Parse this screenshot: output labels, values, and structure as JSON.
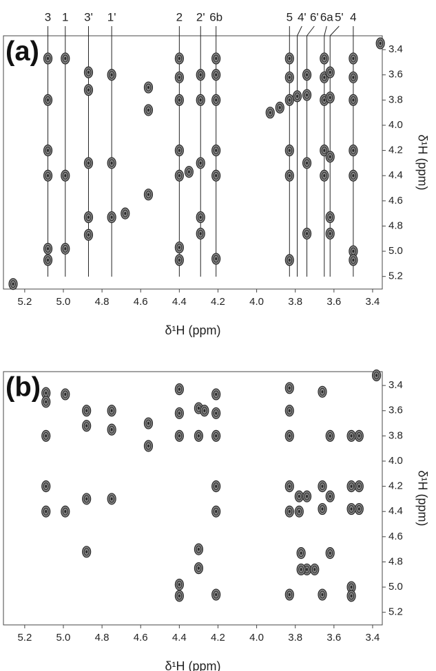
{
  "chart_data": [
    {
      "type": "scatter",
      "panel_label": "(a)",
      "x_label": "δ¹H (ppm)",
      "y_label": "δ¹H (ppm)",
      "xlim": [
        5.31,
        3.35
      ],
      "ylim": [
        5.3,
        3.29
      ],
      "xticks": [
        5.2,
        {
          "value": 5,
          "label": "5.0"
        },
        4.8,
        4.6,
        4.4,
        4.2,
        {
          "value": 4,
          "label": "4.0"
        },
        3.8,
        3.6,
        3.4
      ],
      "yticks": [
        3.4,
        3.6,
        3.8,
        {
          "value": 4,
          "label": "4.0"
        },
        4.2,
        4.4,
        4.6,
        4.8,
        {
          "value": 5,
          "label": "5.0"
        },
        5.2
      ],
      "assignments": {
        "labels": [
          "3",
          "1",
          "3'",
          "1'",
          "2",
          "2'",
          "6b",
          "5",
          "4'",
          "6'",
          "6a",
          "5'",
          "4"
        ],
        "x": [
          5.08,
          4.99,
          4.87,
          4.75,
          4.4,
          4.29,
          4.21,
          3.83,
          3.79,
          3.74,
          3.65,
          3.62,
          3.5
        ]
      },
      "x": [
        5.08,
        5.08,
        5.08,
        5.08,
        5.08,
        5.08,
        4.99,
        4.99,
        4.99,
        4.87,
        4.87,
        4.87,
        4.87,
        4.87,
        4.75,
        4.75,
        4.75,
        4.56,
        4.56,
        4.56,
        4.4,
        4.4,
        4.4,
        4.4,
        4.4,
        4.4,
        4.4,
        4.29,
        4.29,
        4.29,
        4.29,
        4.29,
        4.21,
        4.21,
        4.21,
        4.21,
        4.21,
        4.21,
        3.93,
        3.88,
        3.83,
        3.83,
        3.83,
        3.83,
        3.83,
        3.83,
        3.79,
        3.74,
        3.74,
        3.74,
        3.74,
        3.65,
        3.65,
        3.65,
        3.65,
        3.65,
        3.62,
        3.62,
        3.62,
        3.62,
        3.62,
        3.5,
        3.5,
        3.5,
        3.5,
        3.5,
        3.5,
        3.5,
        3.36,
        5.26,
        4.35,
        4.68
      ],
      "values": [
        3.47,
        3.8,
        4.2,
        4.4,
        4.98,
        5.07,
        3.47,
        4.4,
        4.98,
        3.58,
        3.72,
        4.3,
        4.73,
        4.87,
        3.6,
        4.3,
        4.73,
        3.7,
        3.88,
        4.55,
        3.47,
        3.62,
        3.8,
        4.2,
        4.4,
        4.97,
        5.07,
        3.6,
        3.8,
        4.3,
        4.73,
        4.86,
        3.47,
        3.6,
        3.8,
        4.2,
        4.4,
        5.06,
        3.9,
        3.86,
        3.47,
        3.62,
        3.8,
        4.2,
        4.4,
        5.07,
        3.77,
        3.6,
        3.76,
        4.3,
        4.86,
        3.47,
        3.62,
        3.8,
        4.2,
        4.4,
        3.58,
        3.78,
        4.25,
        4.73,
        4.86,
        3.47,
        3.62,
        3.8,
        4.2,
        4.4,
        5.0,
        5.07,
        3.35,
        5.26,
        4.37,
        4.7
      ],
      "color": "#2a2a2a"
    },
    {
      "type": "scatter",
      "panel_label": "(b)",
      "x_label": "δ¹H (ppm)",
      "y_label": "δ¹H (ppm)",
      "xlim": [
        5.31,
        3.35
      ],
      "ylim": [
        5.3,
        3.29
      ],
      "xticks": [
        5.2,
        {
          "value": 5,
          "label": "5.0"
        },
        4.8,
        4.6,
        4.4,
        4.2,
        {
          "value": 4,
          "label": "4.0"
        },
        3.8,
        3.6,
        3.4
      ],
      "yticks": [
        3.4,
        3.6,
        3.8,
        {
          "value": 4,
          "label": "4.0"
        },
        4.2,
        4.4,
        4.6,
        4.8,
        {
          "value": 5,
          "label": "5.0"
        },
        5.2
      ],
      "x": [
        5.09,
        5.09,
        5.09,
        5.09,
        5.09,
        4.99,
        4.99,
        4.88,
        4.88,
        4.88,
        4.88,
        4.75,
        4.75,
        4.75,
        4.56,
        4.56,
        4.4,
        4.4,
        4.4,
        4.4,
        4.4,
        4.3,
        4.3,
        4.3,
        4.3,
        4.27,
        4.21,
        4.21,
        4.21,
        4.21,
        4.21,
        4.21,
        3.83,
        3.83,
        3.83,
        3.83,
        3.83,
        3.83,
        3.78,
        3.78,
        3.74,
        3.74,
        3.77,
        3.77,
        3.66,
        3.66,
        3.66,
        3.66,
        3.62,
        3.62,
        3.62,
        3.51,
        3.51,
        3.51,
        3.51,
        3.51,
        3.47,
        3.47,
        3.47,
        3.7,
        3.38
      ],
      "values": [
        3.46,
        3.53,
        3.8,
        4.2,
        4.4,
        3.47,
        4.4,
        3.6,
        3.72,
        4.3,
        4.72,
        3.6,
        3.75,
        4.3,
        3.7,
        3.88,
        3.43,
        3.62,
        3.8,
        4.98,
        5.07,
        3.58,
        3.8,
        4.7,
        4.85,
        3.6,
        3.47,
        3.62,
        3.8,
        4.2,
        4.4,
        5.06,
        3.42,
        3.6,
        3.8,
        4.2,
        4.4,
        5.06,
        4.28,
        4.4,
        4.28,
        4.86,
        4.73,
        4.86,
        3.45,
        4.2,
        4.38,
        5.06,
        3.8,
        4.28,
        4.73,
        3.8,
        4.2,
        4.38,
        5.0,
        5.07,
        3.8,
        4.2,
        4.38,
        4.86,
        3.32
      ],
      "color": "#2a2a2a"
    }
  ]
}
